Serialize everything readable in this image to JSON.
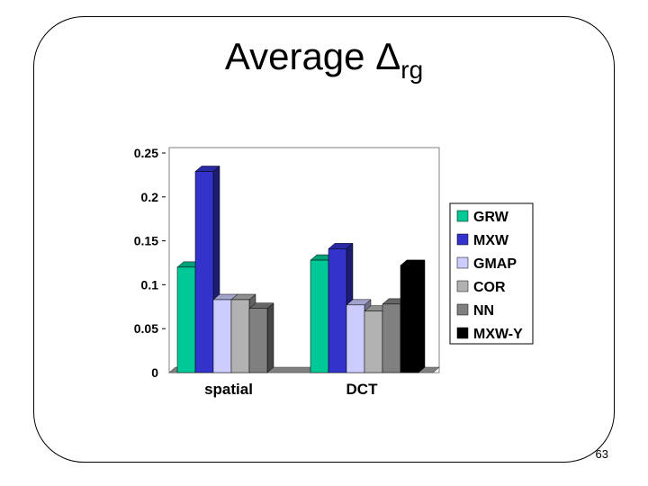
{
  "slide": {
    "title_main": "Average Δ",
    "title_sub": "rg",
    "page_number": "63"
  },
  "chart_data": {
    "type": "bar",
    "title": "Average Δrg",
    "categories": [
      "spatial",
      "DCT"
    ],
    "series": [
      {
        "name": "GRW",
        "color": "#00c896",
        "values": [
          0.12,
          0.128
        ]
      },
      {
        "name": "MXW",
        "color": "#3333cc",
        "values": [
          0.229,
          0.141
        ]
      },
      {
        "name": "GMAP",
        "color": "#ccccff",
        "values": [
          0.083,
          0.077
        ]
      },
      {
        "name": "COR",
        "color": "#b2b2b2",
        "values": [
          0.083,
          0.07
        ]
      },
      {
        "name": "NN",
        "color": "#808080",
        "values": [
          0.073,
          0.078
        ]
      },
      {
        "name": "MXW-Y",
        "color": "#000000",
        "values": [
          0,
          0.122
        ]
      }
    ],
    "ylim": [
      0,
      0.25
    ],
    "yticks": [
      "0",
      "0.05",
      "0.1",
      "0.15",
      "0.2",
      "0.25"
    ],
    "ytick_values": [
      0,
      0.05,
      0.1,
      0.15,
      0.2,
      0.25
    ],
    "legend_position": "right",
    "grid": false
  }
}
